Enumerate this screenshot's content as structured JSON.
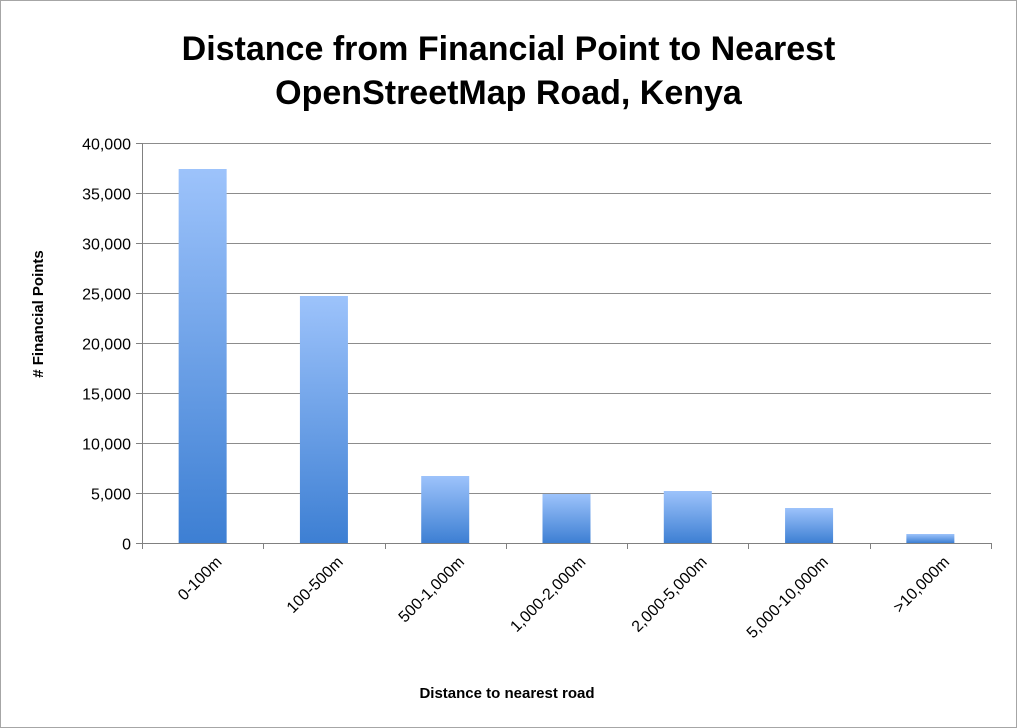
{
  "chart_data": {
    "type": "bar",
    "title_lines": [
      "Distance from Financial Point to Nearest",
      "OpenStreetMap Road, Kenya"
    ],
    "xlabel": "Distance to nearest road",
    "ylabel": "# Financial Points",
    "categories": [
      "0-100m",
      "100-500m",
      "500-1,000m",
      "1,000-2,000m",
      "2,000-5,000m",
      "5,000-10,000m",
      ">10,000m"
    ],
    "values": [
      37400,
      24700,
      6700,
      4900,
      5200,
      3500,
      900
    ],
    "ylim": [
      0,
      40000
    ],
    "yticks": [
      0,
      5000,
      10000,
      15000,
      20000,
      25000,
      30000,
      35000,
      40000
    ],
    "ytick_labels": [
      "0",
      "5,000",
      "10,000",
      "15,000",
      "20,000",
      "25,000",
      "30,000",
      "35,000",
      "40,000"
    ],
    "grid": "horizontal",
    "legend": "none",
    "colors": {
      "bar_top": "#9dc3fb",
      "bar_bottom": "#3d7fd3",
      "grid": "#8c8c8c",
      "axis": "#808080"
    }
  }
}
